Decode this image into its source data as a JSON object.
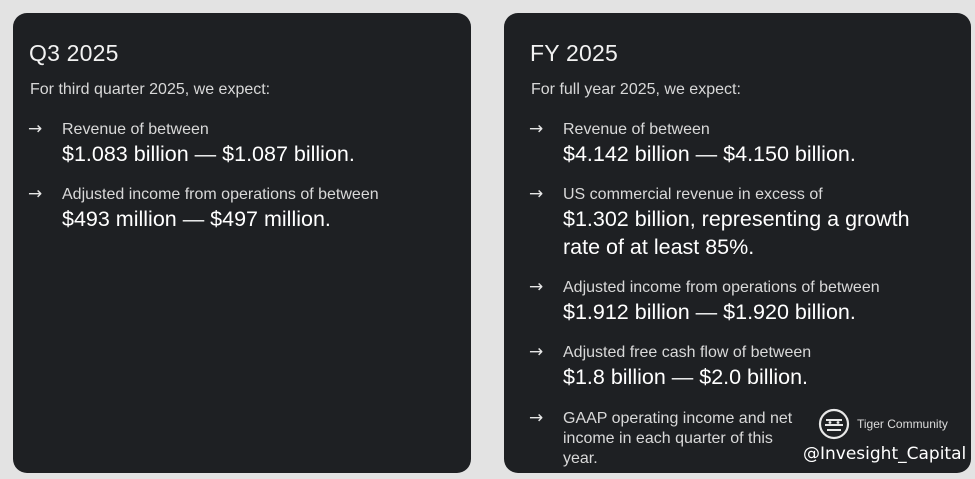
{
  "q3": {
    "title": "Q3 2025",
    "intro": "For third quarter 2025, we expect:",
    "items": [
      {
        "label": "Revenue of between",
        "value": "$1.083 billion — $1.087 billion."
      },
      {
        "label": "Adjusted income from operations of between",
        "value": "$493 million — $497 million."
      }
    ]
  },
  "fy": {
    "title": "FY 2025",
    "intro": "For full year 2025, we expect:",
    "items": [
      {
        "label": "Revenue of between",
        "value": "$4.142 billion — $4.150 billion."
      },
      {
        "label": "US commercial revenue in excess of",
        "value": "$1.302 billion, representing a growth rate of at least 85%."
      },
      {
        "label": "Adjusted income from operations of between",
        "value": "$1.912 billion — $1.920 billion."
      },
      {
        "label": "Adjusted free cash flow of between",
        "value": "$1.8 billion — $2.0 billion."
      },
      {
        "label": "GAAP operating income and net income in each quarter of this year.",
        "value": ""
      }
    ]
  },
  "arrow_glyph": "→",
  "watermark": {
    "brand": "Tiger Community",
    "handle": "@Invesight_Capital"
  }
}
